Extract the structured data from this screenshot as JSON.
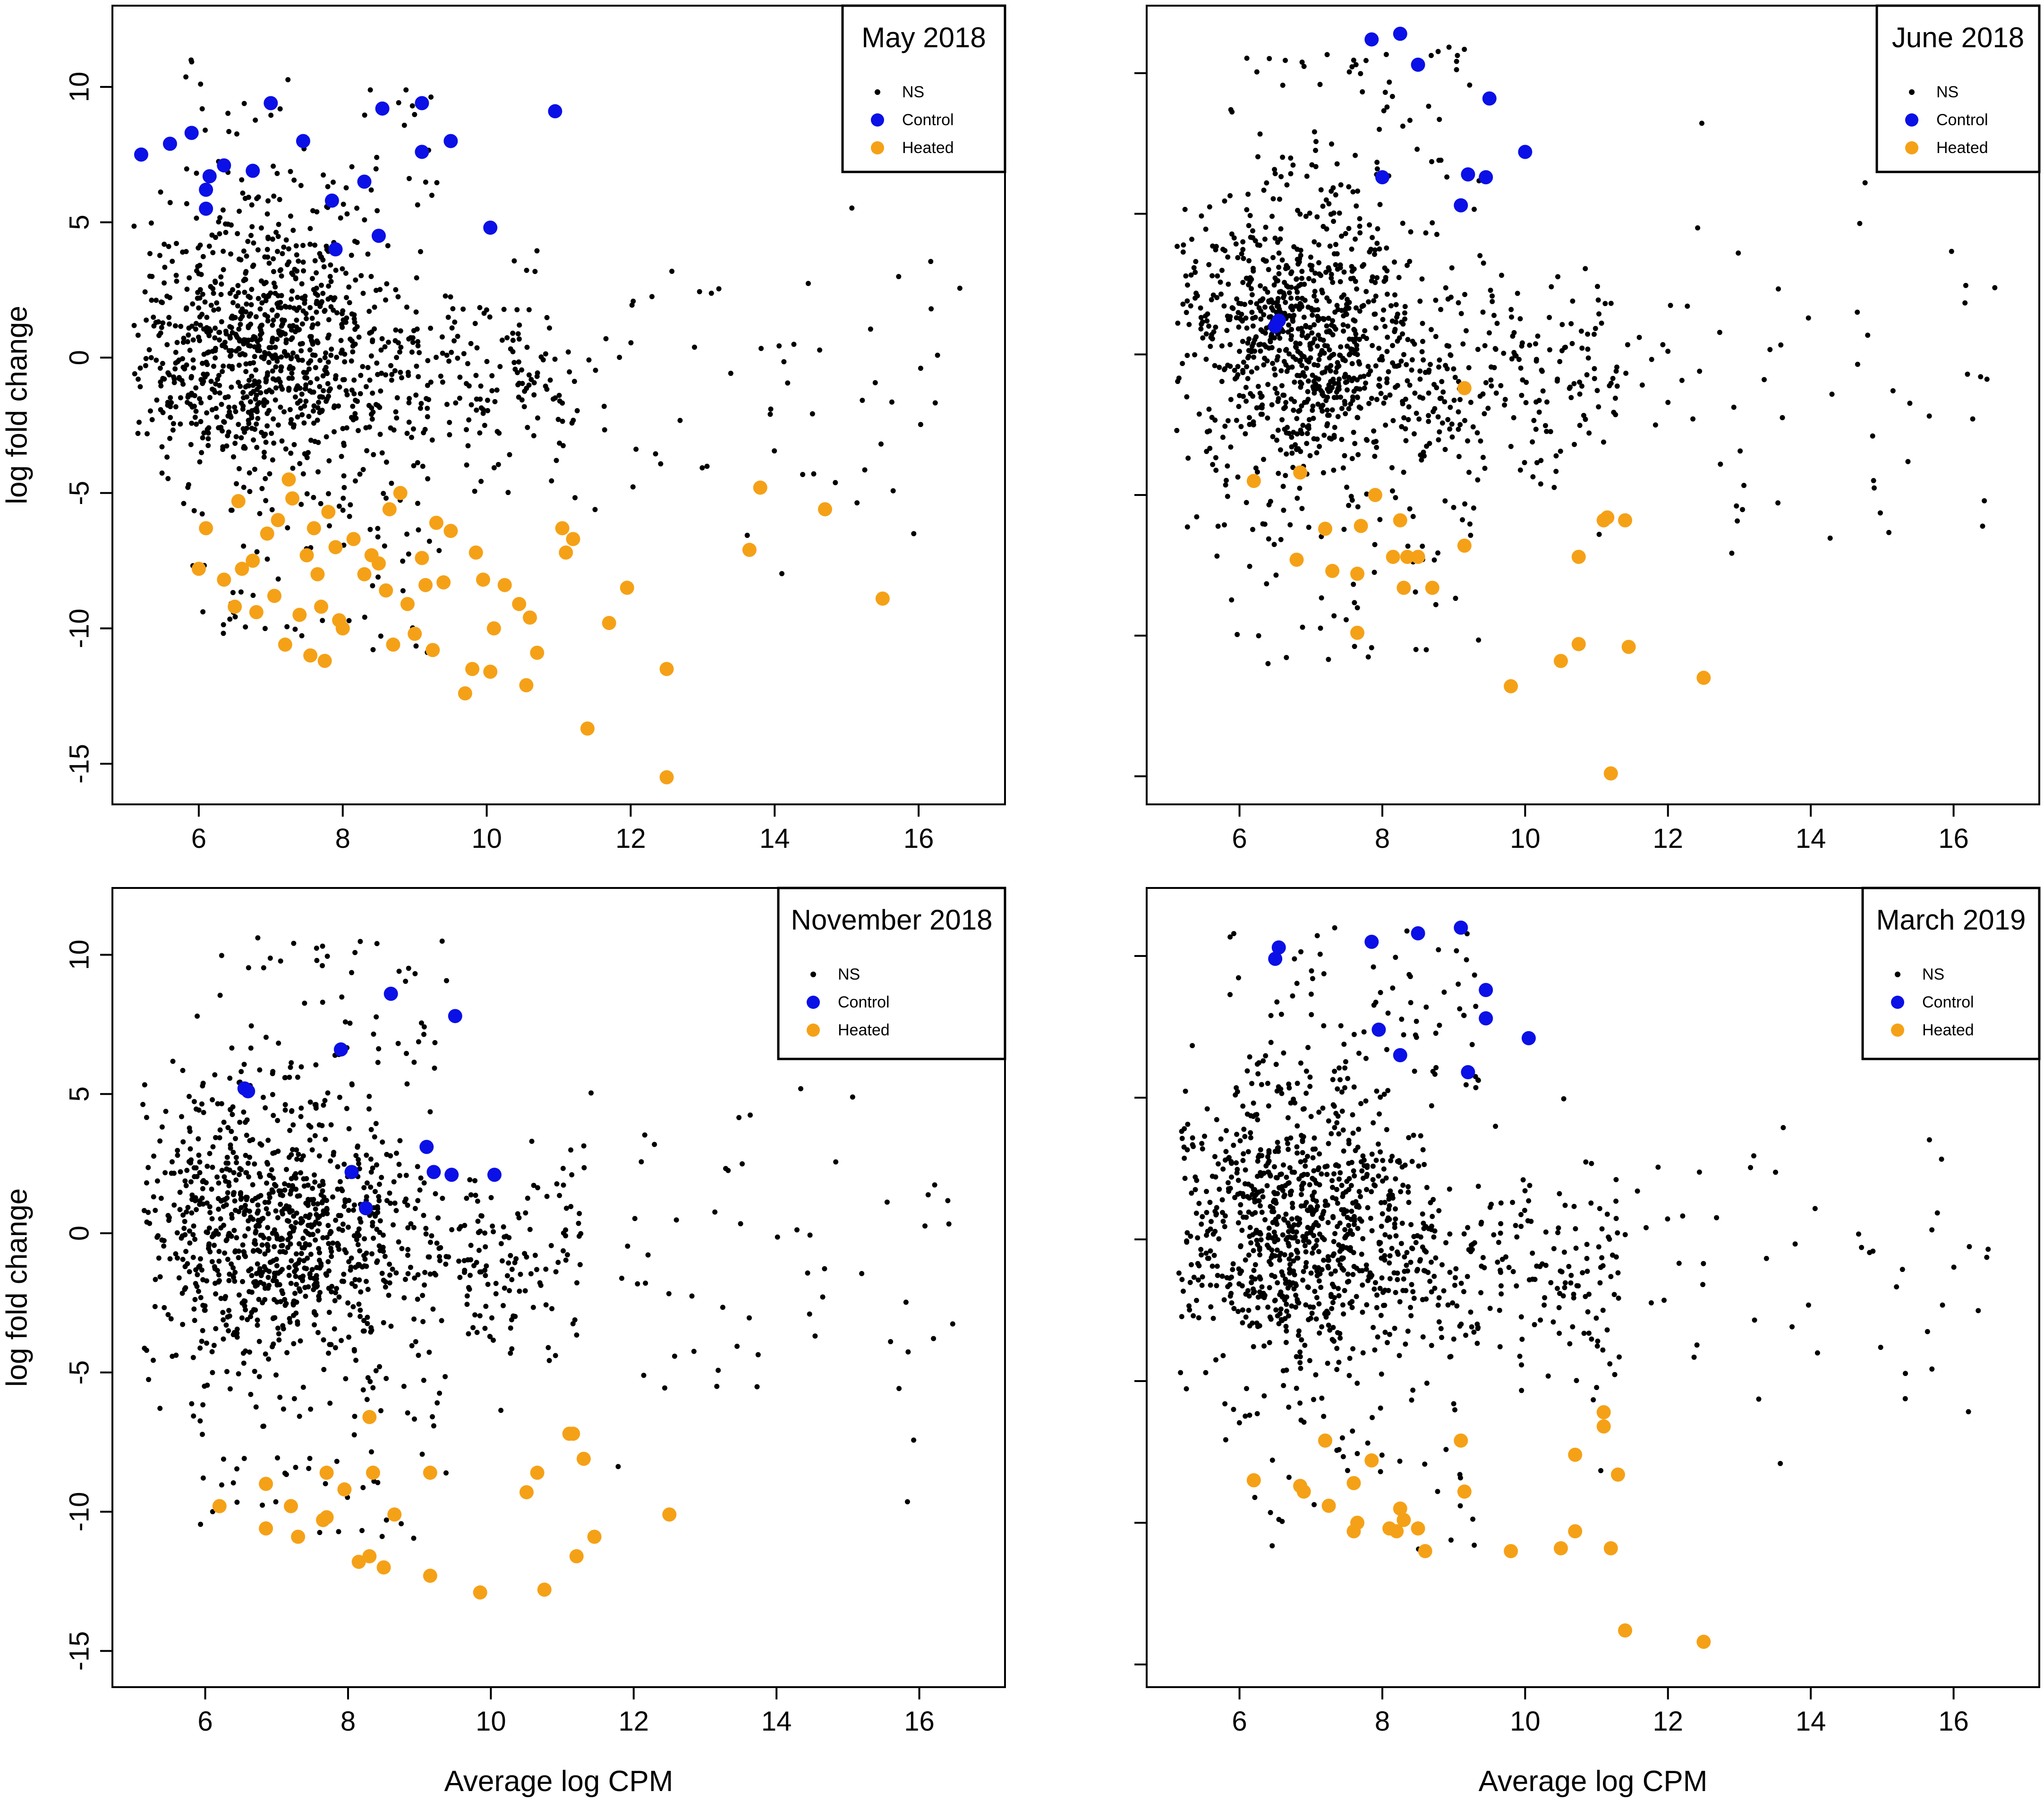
{
  "figure": {
    "legend_labels": {
      "ns": "NS",
      "control": "Control",
      "heated": "Heated"
    },
    "colors": {
      "ns": "#000000",
      "control": "#0b10e6",
      "heated": "#f5a117"
    }
  },
  "chart_data": [
    {
      "type": "scatter",
      "title": "May 2018",
      "xlabel": "",
      "ylabel": "log fold change",
      "xlim": [
        4.8,
        17.2
      ],
      "ylim": [
        -16.5,
        13.0
      ],
      "xticks": [
        "6",
        "8",
        "10",
        "12",
        "14",
        "16"
      ],
      "yticks": [
        "10",
        "5",
        "0",
        "-5",
        "-10",
        "-15"
      ],
      "legend_position": "top-right",
      "ns_seed": 11,
      "series": [
        {
          "name": "Control",
          "points": [
            [
              5.2,
              7.5
            ],
            [
              5.6,
              7.9
            ],
            [
              5.9,
              8.3
            ],
            [
              6.1,
              6.2
            ],
            [
              6.15,
              6.7
            ],
            [
              6.35,
              7.1
            ],
            [
              6.1,
              5.5
            ],
            [
              6.75,
              6.9
            ],
            [
              7.0,
              9.4
            ],
            [
              7.45,
              8.0
            ],
            [
              7.85,
              5.8
            ],
            [
              7.9,
              4.0
            ],
            [
              8.3,
              6.5
            ],
            [
              8.5,
              4.5
            ],
            [
              8.55,
              9.2
            ],
            [
              9.1,
              9.4
            ],
            [
              9.1,
              7.6
            ],
            [
              9.5,
              8.0
            ],
            [
              10.05,
              4.8
            ],
            [
              10.95,
              9.1
            ]
          ]
        },
        {
          "name": "Heated",
          "points": [
            [
              6.0,
              -7.8
            ],
            [
              6.1,
              -6.3
            ],
            [
              6.35,
              -8.2
            ],
            [
              6.5,
              -9.2
            ],
            [
              6.55,
              -5.3
            ],
            [
              6.6,
              -7.8
            ],
            [
              6.75,
              -7.5
            ],
            [
              6.8,
              -9.4
            ],
            [
              6.95,
              -6.5
            ],
            [
              7.05,
              -8.8
            ],
            [
              7.1,
              -6.0
            ],
            [
              7.2,
              -10.6
            ],
            [
              7.25,
              -4.5
            ],
            [
              7.3,
              -5.2
            ],
            [
              7.4,
              -9.5
            ],
            [
              7.5,
              -7.3
            ],
            [
              7.55,
              -11.0
            ],
            [
              7.6,
              -6.3
            ],
            [
              7.65,
              -8.0
            ],
            [
              7.7,
              -9.2
            ],
            [
              7.75,
              -11.2
            ],
            [
              7.8,
              -5.7
            ],
            [
              7.9,
              -7.0
            ],
            [
              7.95,
              -9.7
            ],
            [
              8.0,
              -10.0
            ],
            [
              8.15,
              -6.7
            ],
            [
              8.3,
              -8.0
            ],
            [
              8.4,
              -7.3
            ],
            [
              8.5,
              -7.6
            ],
            [
              8.6,
              -8.6
            ],
            [
              8.65,
              -5.6
            ],
            [
              8.7,
              -10.6
            ],
            [
              8.8,
              -5.0
            ],
            [
              8.9,
              -9.1
            ],
            [
              9.0,
              -10.2
            ],
            [
              9.1,
              -7.4
            ],
            [
              9.15,
              -8.4
            ],
            [
              9.25,
              -10.8
            ],
            [
              9.3,
              -6.1
            ],
            [
              9.4,
              -8.3
            ],
            [
              9.5,
              -6.4
            ],
            [
              9.7,
              -12.4
            ],
            [
              9.8,
              -11.5
            ],
            [
              9.85,
              -7.2
            ],
            [
              9.95,
              -8.2
            ],
            [
              10.05,
              -11.6
            ],
            [
              10.1,
              -10.0
            ],
            [
              10.25,
              -8.4
            ],
            [
              10.45,
              -9.1
            ],
            [
              10.55,
              -12.1
            ],
            [
              10.6,
              -9.6
            ],
            [
              10.7,
              -10.9
            ],
            [
              11.05,
              -6.3
            ],
            [
              11.1,
              -7.2
            ],
            [
              11.2,
              -6.7
            ],
            [
              11.4,
              -13.7
            ],
            [
              11.7,
              -9.8
            ],
            [
              11.95,
              -8.5
            ],
            [
              12.5,
              -11.5
            ],
            [
              12.5,
              -15.5
            ],
            [
              13.65,
              -7.1
            ],
            [
              13.8,
              -4.8
            ],
            [
              14.7,
              -5.6
            ],
            [
              15.5,
              -8.9
            ]
          ]
        }
      ]
    },
    {
      "type": "scatter",
      "title": "June 2018",
      "xlabel": "",
      "ylabel": "",
      "xlim": [
        4.7,
        17.2
      ],
      "ylim": [
        -16.0,
        12.4
      ],
      "xticks": [
        "6",
        "8",
        "10",
        "12",
        "14",
        "16"
      ],
      "yticks": [],
      "legend_position": "top-right",
      "ns_seed": 23,
      "series": [
        {
          "name": "Control",
          "points": [
            [
              6.5,
              1.0
            ],
            [
              6.55,
              1.2
            ],
            [
              7.85,
              11.2
            ],
            [
              8.0,
              6.3
            ],
            [
              8.25,
              11.4
            ],
            [
              8.5,
              10.3
            ],
            [
              9.1,
              5.3
            ],
            [
              9.2,
              6.4
            ],
            [
              9.45,
              6.3
            ],
            [
              9.5,
              9.1
            ],
            [
              10.0,
              7.2
            ]
          ]
        },
        {
          "name": "Heated",
          "points": [
            [
              6.2,
              -4.5
            ],
            [
              6.8,
              -7.3
            ],
            [
              6.85,
              -4.2
            ],
            [
              7.2,
              -6.2
            ],
            [
              7.3,
              -7.7
            ],
            [
              7.65,
              -9.9
            ],
            [
              7.65,
              -7.8
            ],
            [
              7.7,
              -6.1
            ],
            [
              7.9,
              -5.0
            ],
            [
              8.15,
              -7.2
            ],
            [
              8.25,
              -5.9
            ],
            [
              8.3,
              -8.3
            ],
            [
              8.35,
              -7.2
            ],
            [
              8.5,
              -7.2
            ],
            [
              8.7,
              -8.3
            ],
            [
              9.15,
              -1.2
            ],
            [
              9.15,
              -6.8
            ],
            [
              9.8,
              -11.8
            ],
            [
              10.5,
              -10.9
            ],
            [
              10.75,
              -10.3
            ],
            [
              10.75,
              -7.2
            ],
            [
              11.1,
              -5.9
            ],
            [
              11.15,
              -5.8
            ],
            [
              11.2,
              -14.9
            ],
            [
              11.4,
              -5.9
            ],
            [
              11.45,
              -10.4
            ],
            [
              12.5,
              -11.5
            ]
          ]
        }
      ]
    },
    {
      "type": "scatter",
      "title": "November 2018",
      "xlabel": "Average log CPM",
      "ylabel": "log fold change",
      "xlim": [
        4.7,
        17.2
      ],
      "ylim": [
        -16.3,
        12.4
      ],
      "xticks": [
        "6",
        "8",
        "10",
        "12",
        "14",
        "16"
      ],
      "yticks": [
        "10",
        "5",
        "0",
        "-5",
        "-10",
        "-15"
      ],
      "legend_position": "top-right",
      "ns_seed": 37,
      "series": [
        {
          "name": "Control",
          "points": [
            [
              6.55,
              5.2
            ],
            [
              6.6,
              5.1
            ],
            [
              7.9,
              6.6
            ],
            [
              8.05,
              2.2
            ],
            [
              8.25,
              0.9
            ],
            [
              8.6,
              8.6
            ],
            [
              9.1,
              3.1
            ],
            [
              9.2,
              2.2
            ],
            [
              9.45,
              2.1
            ],
            [
              9.5,
              7.8
            ],
            [
              10.05,
              2.1
            ]
          ]
        },
        {
          "name": "Heated",
          "points": [
            [
              6.2,
              -9.8
            ],
            [
              6.85,
              -10.6
            ],
            [
              6.85,
              -9.0
            ],
            [
              7.2,
              -9.8
            ],
            [
              7.3,
              -10.9
            ],
            [
              7.65,
              -10.3
            ],
            [
              7.7,
              -10.2
            ],
            [
              7.7,
              -8.6
            ],
            [
              7.95,
              -9.2
            ],
            [
              8.15,
              -11.8
            ],
            [
              8.3,
              -6.6
            ],
            [
              8.3,
              -11.6
            ],
            [
              8.35,
              -8.6
            ],
            [
              8.5,
              -12.0
            ],
            [
              8.65,
              -10.1
            ],
            [
              9.15,
              -12.3
            ],
            [
              9.15,
              -8.6
            ],
            [
              9.85,
              -12.9
            ],
            [
              10.5,
              -9.3
            ],
            [
              10.65,
              -8.6
            ],
            [
              10.75,
              -12.8
            ],
            [
              11.1,
              -7.2
            ],
            [
              11.15,
              -7.2
            ],
            [
              11.2,
              -11.6
            ],
            [
              11.3,
              -8.1
            ],
            [
              11.45,
              -10.9
            ],
            [
              12.5,
              -10.1
            ]
          ]
        }
      ]
    },
    {
      "type": "scatter",
      "title": "March 2019",
      "xlabel": "Average log CPM",
      "ylabel": "",
      "xlim": [
        4.7,
        17.2
      ],
      "ylim": [
        -15.8,
        12.4
      ],
      "xticks": [
        "6",
        "8",
        "10",
        "12",
        "14",
        "16"
      ],
      "yticks": [],
      "legend_position": "top-right",
      "ns_seed": 53,
      "series": [
        {
          "name": "Control",
          "points": [
            [
              6.5,
              9.9
            ],
            [
              6.55,
              10.3
            ],
            [
              7.85,
              10.5
            ],
            [
              7.95,
              7.4
            ],
            [
              8.25,
              6.5
            ],
            [
              8.5,
              10.8
            ],
            [
              9.1,
              11.0
            ],
            [
              9.2,
              5.9
            ],
            [
              9.45,
              8.8
            ],
            [
              9.45,
              7.8
            ],
            [
              10.05,
              7.1
            ]
          ]
        },
        {
          "name": "Heated",
          "points": [
            [
              6.2,
              -8.5
            ],
            [
              6.85,
              -8.7
            ],
            [
              6.9,
              -8.9
            ],
            [
              7.2,
              -7.1
            ],
            [
              7.25,
              -9.4
            ],
            [
              7.6,
              -8.6
            ],
            [
              7.6,
              -10.3
            ],
            [
              7.65,
              -10.0
            ],
            [
              7.85,
              -7.8
            ],
            [
              8.1,
              -10.2
            ],
            [
              8.2,
              -10.3
            ],
            [
              8.25,
              -9.5
            ],
            [
              8.3,
              -9.9
            ],
            [
              8.5,
              -10.2
            ],
            [
              8.6,
              -11.0
            ],
            [
              9.1,
              -7.1
            ],
            [
              9.15,
              -8.9
            ],
            [
              9.8,
              -11.0
            ],
            [
              10.5,
              -10.9
            ],
            [
              10.7,
              -10.3
            ],
            [
              10.7,
              -7.6
            ],
            [
              11.1,
              -6.1
            ],
            [
              11.1,
              -6.6
            ],
            [
              11.2,
              -10.9
            ],
            [
              11.3,
              -8.3
            ],
            [
              11.4,
              -13.8
            ],
            [
              12.5,
              -14.2
            ]
          ]
        }
      ]
    }
  ]
}
